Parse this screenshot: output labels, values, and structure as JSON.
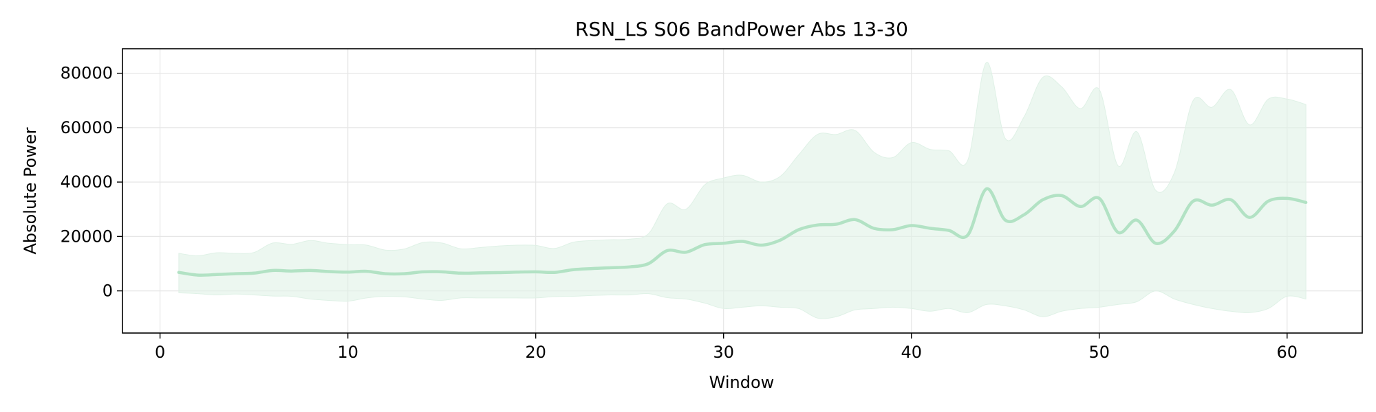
{
  "chart_data": {
    "type": "line",
    "title": "RSN_LS S06 BandPower Abs 13-30",
    "xlabel": "Window",
    "ylabel": "Absolute Power",
    "xlim": [
      -2,
      64
    ],
    "ylim": [
      -15500,
      89000
    ],
    "xticks": [
      0,
      10,
      20,
      30,
      40,
      50,
      60
    ],
    "xtick_labels": [
      "0",
      "10",
      "20",
      "30",
      "40",
      "50",
      "60"
    ],
    "yticks": [
      0,
      20000,
      40000,
      60000,
      80000
    ],
    "ytick_labels": [
      "0",
      "20000",
      "40000",
      "60000",
      "80000"
    ],
    "grid": true,
    "legend": "none",
    "colors": {
      "line": "#b2e2c4",
      "band": "#dff1e6",
      "grid": "#e6e6e6",
      "axes": "#000000"
    },
    "series": [
      {
        "x": [
          1,
          2,
          3,
          4,
          5,
          6,
          7,
          8,
          9,
          10,
          11,
          12,
          13,
          14,
          15,
          16,
          17,
          18,
          19,
          20,
          21,
          22,
          23,
          24,
          25,
          26,
          27,
          28,
          29,
          30,
          31,
          32,
          33,
          34,
          35,
          36,
          37,
          38,
          39,
          40,
          41,
          42,
          43,
          44,
          45,
          46,
          47,
          48,
          49,
          50,
          51,
          52,
          53,
          54,
          55,
          56,
          57,
          58,
          59,
          60,
          61
        ],
        "mean": [
          6800,
          5800,
          6000,
          6300,
          6500,
          7500,
          7300,
          7500,
          7100,
          6900,
          7200,
          6300,
          6300,
          7000,
          7000,
          6500,
          6600,
          6700,
          6900,
          7000,
          6800,
          7800,
          8200,
          8500,
          8800,
          10000,
          14800,
          14200,
          17000,
          17500,
          18200,
          16800,
          18600,
          22500,
          24200,
          24500,
          26200,
          23000,
          22500,
          24000,
          23000,
          22200,
          20500,
          37500,
          26000,
          28000,
          33500,
          35000,
          31000,
          34000,
          21500,
          26000,
          17500,
          22000,
          33000,
          31500,
          33500,
          27000,
          33000,
          34000,
          32500
        ],
        "upper": [
          13800,
          12900,
          14000,
          13800,
          14100,
          17600,
          17100,
          18500,
          17500,
          17000,
          16800,
          15000,
          15400,
          17800,
          17600,
          15500,
          15900,
          16500,
          16800,
          16700,
          15600,
          17900,
          18500,
          18800,
          19000,
          21000,
          32000,
          30000,
          39000,
          41500,
          42500,
          40000,
          42000,
          50000,
          57500,
          57500,
          59000,
          51000,
          49000,
          54500,
          52000,
          51500,
          48000,
          84000,
          56000,
          64000,
          78500,
          75000,
          67000,
          74000,
          46000,
          58500,
          37000,
          43500,
          70000,
          67500,
          74000,
          61000,
          70500,
          70500,
          68500
        ],
        "lower": [
          -700,
          -1000,
          -1500,
          -1200,
          -1500,
          -1900,
          -2000,
          -3000,
          -3500,
          -3800,
          -2600,
          -2000,
          -2200,
          -3000,
          -3500,
          -2600,
          -2600,
          -2600,
          -2600,
          -2600,
          -2100,
          -2000,
          -1700,
          -1500,
          -1500,
          -1000,
          -2500,
          -3000,
          -4500,
          -6500,
          -6000,
          -5500,
          -6000,
          -6500,
          -10000,
          -9500,
          -7000,
          -6500,
          -6000,
          -6500,
          -7500,
          -6500,
          -8000,
          -5000,
          -5500,
          -7000,
          -9500,
          -7500,
          -6500,
          -6000,
          -5000,
          -4000,
          0,
          -3000,
          -5000,
          -6500,
          -7500,
          -8000,
          -6500,
          -2000,
          -3000
        ]
      }
    ]
  }
}
